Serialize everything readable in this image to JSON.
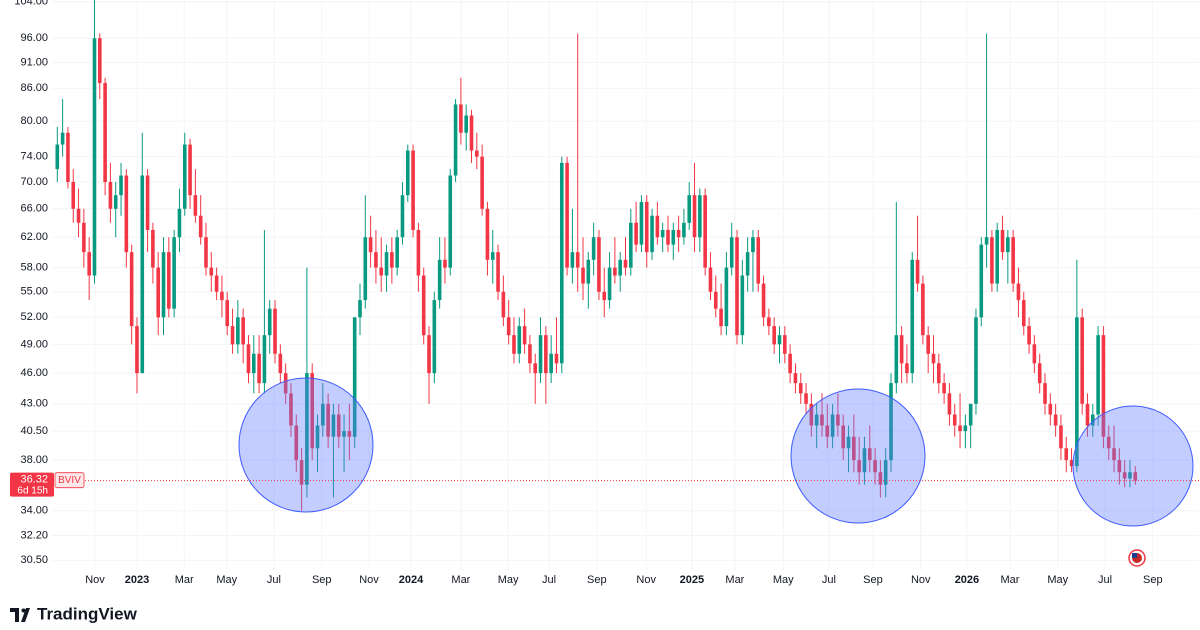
{
  "chart_data": {
    "type": "candlestick",
    "log": true,
    "grid": true,
    "up_color": "#089981",
    "down_color": "#f23645",
    "symbol": "BVIV",
    "last_price": 36.32,
    "countdown": "6d 15h",
    "brand": "TradingView",
    "ylim": [
      29.85,
      104.4
    ],
    "yticks": [
      {
        "value": 104,
        "label": "104.00"
      },
      {
        "value": 96,
        "label": "96.00"
      },
      {
        "value": 91,
        "label": "91.00"
      },
      {
        "value": 86,
        "label": "86.00"
      },
      {
        "value": 80,
        "label": "80.00"
      },
      {
        "value": 74,
        "label": "74.00"
      },
      {
        "value": 70,
        "label": "70.00"
      },
      {
        "value": 66,
        "label": "66.00"
      },
      {
        "value": 62,
        "label": "62.00"
      },
      {
        "value": 58,
        "label": "58.00"
      },
      {
        "value": 55,
        "label": "55.00"
      },
      {
        "value": 52,
        "label": "52.00"
      },
      {
        "value": 49,
        "label": "49.00"
      },
      {
        "value": 46,
        "label": "46.00"
      },
      {
        "value": 43,
        "label": "43.00"
      },
      {
        "value": 40.5,
        "label": "40.50"
      },
      {
        "value": 38,
        "label": "38.00"
      },
      {
        "value": 34,
        "label": "34.00"
      },
      {
        "value": 32.2,
        "label": "32.20"
      },
      {
        "value": 30.5,
        "label": "30.50"
      }
    ],
    "xlim": [
      -16,
      200
    ],
    "xticks": [
      {
        "value": -7.9,
        "label": "Nov"
      },
      {
        "value": 0,
        "label": "2023"
      },
      {
        "value": 8.9,
        "label": "Mar"
      },
      {
        "value": 16.9,
        "label": "May"
      },
      {
        "value": 25.8,
        "label": "Jul"
      },
      {
        "value": 34.8,
        "label": "Sep"
      },
      {
        "value": 43.7,
        "label": "Nov"
      },
      {
        "value": 51.6,
        "label": "2024"
      },
      {
        "value": 61,
        "label": "Mar"
      },
      {
        "value": 69.9,
        "label": "May"
      },
      {
        "value": 77.6,
        "label": "Jul"
      },
      {
        "value": 86.6,
        "label": "Sep"
      },
      {
        "value": 95.9,
        "label": "Nov"
      },
      {
        "value": 104.5,
        "label": "2025"
      },
      {
        "value": 112.6,
        "label": "Mar"
      },
      {
        "value": 121.7,
        "label": "May"
      },
      {
        "value": 130.3,
        "label": "Jul"
      },
      {
        "value": 138.6,
        "label": "Sep"
      },
      {
        "value": 147.6,
        "label": "Nov"
      },
      {
        "value": 156.3,
        "label": "2026"
      },
      {
        "value": 164.4,
        "label": "Mar"
      },
      {
        "value": 173.4,
        "label": "May"
      },
      {
        "value": 182.3,
        "label": "Jul"
      },
      {
        "value": 191.3,
        "label": "Sep"
      }
    ],
    "x": [
      -15,
      -14,
      -13,
      -12,
      -11,
      -10,
      -9,
      -8,
      -7,
      -6,
      -5,
      -4,
      -3,
      -2,
      -1,
      0,
      1,
      2,
      3,
      4,
      5,
      6,
      7,
      8,
      9,
      10,
      11,
      12,
      13,
      14,
      15,
      16,
      17,
      18,
      19,
      20,
      21,
      22,
      23,
      24,
      25,
      26,
      27,
      28,
      29,
      30,
      31,
      32,
      33,
      34,
      35,
      36,
      37,
      38,
      39,
      40,
      41,
      42,
      43,
      44,
      45,
      46,
      47,
      48,
      49,
      50,
      51,
      52,
      53,
      54,
      55,
      56,
      57,
      58,
      59,
      60,
      61,
      62,
      63,
      64,
      65,
      66,
      67,
      68,
      69,
      70,
      71,
      72,
      73,
      74,
      75,
      76,
      77,
      78,
      79,
      80,
      81,
      82,
      83,
      84,
      85,
      86,
      87,
      88,
      89,
      90,
      91,
      92,
      93,
      94,
      95,
      96,
      97,
      98,
      99,
      100,
      101,
      102,
      103,
      104,
      105,
      106,
      107,
      108,
      109,
      110,
      111,
      112,
      113,
      114,
      115,
      116,
      117,
      118,
      119,
      120,
      121,
      122,
      123,
      124,
      125,
      126,
      127,
      128,
      129,
      130,
      131,
      132,
      133,
      134,
      135,
      136,
      137,
      138,
      139,
      140,
      141,
      142,
      143,
      144,
      145,
      146,
      147,
      148,
      149,
      150,
      151,
      152,
      153,
      154,
      155,
      156,
      157,
      158,
      159,
      160,
      161,
      162,
      163,
      164,
      165,
      166,
      167,
      168,
      169,
      170,
      171,
      172,
      173,
      174,
      175,
      176,
      177,
      178,
      179,
      180,
      181,
      182,
      183,
      184,
      185,
      186,
      187,
      188
    ],
    "values": [
      [
        72,
        79,
        70,
        76
      ],
      [
        76,
        84,
        74,
        78
      ],
      [
        78,
        79,
        69,
        70
      ],
      [
        70,
        72,
        64,
        66
      ],
      [
        66,
        69,
        62,
        64
      ],
      [
        64,
        66,
        58,
        60
      ],
      [
        60,
        62,
        54,
        57
      ],
      [
        57,
        106,
        56,
        96
      ],
      [
        96,
        97,
        84,
        87
      ],
      [
        87,
        88,
        68,
        70
      ],
      [
        70,
        73,
        64,
        66
      ],
      [
        66,
        70,
        62,
        68
      ],
      [
        68,
        73,
        65,
        71
      ],
      [
        71,
        72,
        58,
        60
      ],
      [
        60,
        61,
        49,
        51
      ],
      [
        51,
        52,
        44,
        46
      ],
      [
        46,
        78,
        46,
        71
      ],
      [
        71,
        72,
        60,
        63
      ],
      [
        63,
        64,
        56,
        58
      ],
      [
        58,
        60,
        50,
        52
      ],
      [
        52,
        62,
        50,
        60
      ],
      [
        60,
        62,
        52,
        53
      ],
      [
        53,
        63,
        52,
        62
      ],
      [
        62,
        69,
        60,
        66
      ],
      [
        66,
        78,
        65,
        76
      ],
      [
        76,
        77,
        66,
        68
      ],
      [
        68,
        72,
        64,
        65
      ],
      [
        65,
        68,
        61,
        62
      ],
      [
        62,
        64,
        57,
        58
      ],
      [
        58,
        60,
        55,
        57
      ],
      [
        57,
        58,
        54,
        55
      ],
      [
        55,
        57,
        52,
        54
      ],
      [
        54,
        55,
        50,
        51
      ],
      [
        51,
        53,
        48,
        49
      ],
      [
        49,
        54,
        48,
        52
      ],
      [
        52,
        53,
        47,
        49
      ],
      [
        49,
        50,
        45,
        46
      ],
      [
        46,
        50,
        44,
        48
      ],
      [
        48,
        50,
        44,
        45
      ],
      [
        45,
        63,
        44,
        50
      ],
      [
        50,
        54,
        48,
        53
      ],
      [
        53,
        54,
        47,
        48
      ],
      [
        48,
        49,
        45,
        46
      ],
      [
        46,
        47,
        43,
        44
      ],
      [
        44,
        45,
        40,
        41
      ],
      [
        41,
        42,
        37,
        38
      ],
      [
        38,
        39,
        34,
        36
      ],
      [
        36,
        58,
        35,
        46
      ],
      [
        46,
        47,
        38,
        39
      ],
      [
        39,
        42,
        37,
        41
      ],
      [
        41,
        45,
        40,
        43
      ],
      [
        43,
        44,
        39,
        40
      ],
      [
        40,
        43,
        35,
        42
      ],
      [
        42,
        43,
        39,
        40
      ],
      [
        40,
        42,
        37,
        40.5
      ],
      [
        40.5,
        43,
        38,
        40
      ],
      [
        40,
        52,
        39,
        52
      ],
      [
        52,
        56,
        50,
        54
      ],
      [
        54,
        68,
        53,
        62
      ],
      [
        62,
        65,
        58,
        60
      ],
      [
        60,
        63,
        56,
        58
      ],
      [
        58,
        62,
        55,
        57
      ],
      [
        57,
        61,
        55,
        60
      ],
      [
        60,
        62,
        56,
        58
      ],
      [
        58,
        63,
        57,
        62
      ],
      [
        62,
        70,
        61,
        68
      ],
      [
        68,
        76,
        67,
        75
      ],
      [
        75,
        76,
        62,
        63
      ],
      [
        63,
        64,
        55,
        57
      ],
      [
        57,
        58,
        49,
        50
      ],
      [
        50,
        51,
        43,
        46
      ],
      [
        46,
        55,
        45,
        54
      ],
      [
        54,
        62,
        53,
        59
      ],
      [
        59,
        62,
        56,
        58
      ],
      [
        58,
        72,
        57,
        71
      ],
      [
        71,
        84,
        70,
        83
      ],
      [
        83,
        88,
        76,
        78
      ],
      [
        78,
        83,
        75,
        81
      ],
      [
        81,
        82,
        73,
        75
      ],
      [
        75,
        78,
        72,
        74
      ],
      [
        74,
        76,
        65,
        66
      ],
      [
        66,
        67,
        57,
        59
      ],
      [
        59,
        63,
        56,
        60
      ],
      [
        60,
        61,
        54,
        55
      ],
      [
        55,
        57,
        51,
        52
      ],
      [
        52,
        54,
        49,
        50
      ],
      [
        50,
        52,
        47,
        48
      ],
      [
        48,
        52,
        47,
        51
      ],
      [
        51,
        53,
        48,
        49
      ],
      [
        49,
        50,
        46,
        47
      ],
      [
        47,
        48,
        43,
        46
      ],
      [
        46,
        52,
        45,
        50
      ],
      [
        50,
        51,
        43,
        46
      ],
      [
        46,
        50,
        45,
        48
      ],
      [
        48,
        52,
        46,
        47
      ],
      [
        47,
        74,
        46,
        73
      ],
      [
        73,
        74,
        57,
        58
      ],
      [
        58,
        66,
        56,
        60
      ],
      [
        60,
        97,
        55,
        58
      ],
      [
        58,
        62,
        54,
        56
      ],
      [
        56,
        60,
        53,
        59
      ],
      [
        59,
        64,
        57,
        62
      ],
      [
        62,
        63,
        54,
        55
      ],
      [
        55,
        58,
        52,
        54
      ],
      [
        54,
        60,
        53,
        58
      ],
      [
        58,
        62,
        56,
        57
      ],
      [
        57,
        60,
        55,
        59
      ],
      [
        59,
        62,
        57,
        58
      ],
      [
        58,
        66,
        57,
        64
      ],
      [
        64,
        67,
        60,
        61
      ],
      [
        61,
        68,
        60,
        67
      ],
      [
        67,
        68,
        58,
        60
      ],
      [
        60,
        66,
        59,
        65
      ],
      [
        65,
        67,
        61,
        62
      ],
      [
        62,
        64,
        60,
        63
      ],
      [
        63,
        65,
        60,
        61
      ],
      [
        61,
        64,
        59,
        63
      ],
      [
        63,
        65,
        60,
        62
      ],
      [
        62,
        66,
        61,
        64
      ],
      [
        64,
        70,
        63,
        68
      ],
      [
        68,
        73,
        60,
        62
      ],
      [
        62,
        69,
        60,
        68
      ],
      [
        68,
        69,
        57,
        58
      ],
      [
        58,
        60,
        54,
        55
      ],
      [
        55,
        57,
        52,
        53
      ],
      [
        53,
        56,
        50,
        51
      ],
      [
        51,
        60,
        50,
        58
      ],
      [
        58,
        64,
        57,
        62
      ],
      [
        62,
        63,
        49,
        50
      ],
      [
        50,
        59,
        49,
        57
      ],
      [
        57,
        62,
        55,
        60
      ],
      [
        60,
        63,
        55,
        62
      ],
      [
        62,
        63,
        55,
        56
      ],
      [
        56,
        57,
        51,
        52
      ],
      [
        52,
        53,
        50,
        51
      ],
      [
        51,
        52,
        48,
        49
      ],
      [
        49,
        51,
        47,
        50
      ],
      [
        50,
        51,
        47,
        48
      ],
      [
        48,
        49,
        45,
        46
      ],
      [
        46,
        47,
        44,
        45
      ],
      [
        45,
        46,
        43,
        44
      ],
      [
        44,
        45,
        42,
        43
      ],
      [
        43,
        44,
        40,
        41
      ],
      [
        41,
        43,
        39,
        42
      ],
      [
        42,
        44,
        40,
        41
      ],
      [
        41,
        43,
        39,
        40
      ],
      [
        40,
        43,
        39,
        42
      ],
      [
        42,
        44,
        40,
        41
      ],
      [
        41,
        42,
        38,
        39
      ],
      [
        39,
        41,
        37,
        40
      ],
      [
        40,
        42,
        37,
        38
      ],
      [
        38,
        40,
        36,
        37
      ],
      [
        37,
        40,
        36,
        39
      ],
      [
        39,
        41,
        37,
        38
      ],
      [
        38,
        39,
        36,
        37
      ],
      [
        37,
        38,
        35,
        36
      ],
      [
        36,
        39,
        35,
        38
      ],
      [
        38,
        46,
        37,
        45
      ],
      [
        45,
        67,
        44,
        50
      ],
      [
        50,
        51,
        45,
        47
      ],
      [
        47,
        49,
        45,
        46
      ],
      [
        46,
        60,
        45,
        59
      ],
      [
        59,
        65,
        55,
        56
      ],
      [
        56,
        57,
        49,
        50
      ],
      [
        50,
        51,
        46,
        48
      ],
      [
        48,
        50,
        45,
        47
      ],
      [
        47,
        48,
        44,
        45
      ],
      [
        45,
        46,
        43,
        44
      ],
      [
        44,
        45,
        41,
        42
      ],
      [
        42,
        43,
        40,
        41
      ],
      [
        41,
        44,
        39,
        40.5
      ],
      [
        40.5,
        42,
        39,
        41
      ],
      [
        41,
        43,
        39,
        43
      ],
      [
        43,
        53,
        42,
        52
      ],
      [
        52,
        62,
        51,
        61
      ],
      [
        61,
        97,
        58,
        62
      ],
      [
        62,
        63,
        55,
        56
      ],
      [
        56,
        64,
        55,
        63
      ],
      [
        63,
        65,
        59,
        60
      ],
      [
        60,
        63,
        56,
        62
      ],
      [
        62,
        63,
        55,
        56
      ],
      [
        56,
        58,
        52,
        54
      ],
      [
        54,
        55,
        50,
        51
      ],
      [
        51,
        52,
        48,
        49
      ],
      [
        49,
        50,
        46,
        47
      ],
      [
        47,
        48,
        44,
        45
      ],
      [
        45,
        46,
        42,
        43
      ],
      [
        43,
        44,
        41,
        42
      ],
      [
        42,
        43,
        40,
        41
      ],
      [
        41,
        42,
        38,
        39
      ],
      [
        39,
        40,
        37,
        38
      ],
      [
        38,
        39,
        37,
        37.5
      ],
      [
        37.5,
        59,
        37,
        52
      ],
      [
        52,
        53,
        42,
        43
      ],
      [
        43,
        44,
        40,
        41
      ],
      [
        41,
        43,
        40,
        42
      ],
      [
        42,
        51,
        41,
        50
      ],
      [
        50,
        51,
        39,
        40
      ],
      [
        40,
        41,
        38,
        39
      ],
      [
        39,
        41,
        37,
        38
      ],
      [
        38,
        39,
        36,
        37
      ],
      [
        37,
        38,
        35.8,
        36.5
      ],
      [
        36.5,
        38,
        35.8,
        37
      ],
      [
        37,
        37.5,
        36,
        36.32
      ]
    ]
  }
}
